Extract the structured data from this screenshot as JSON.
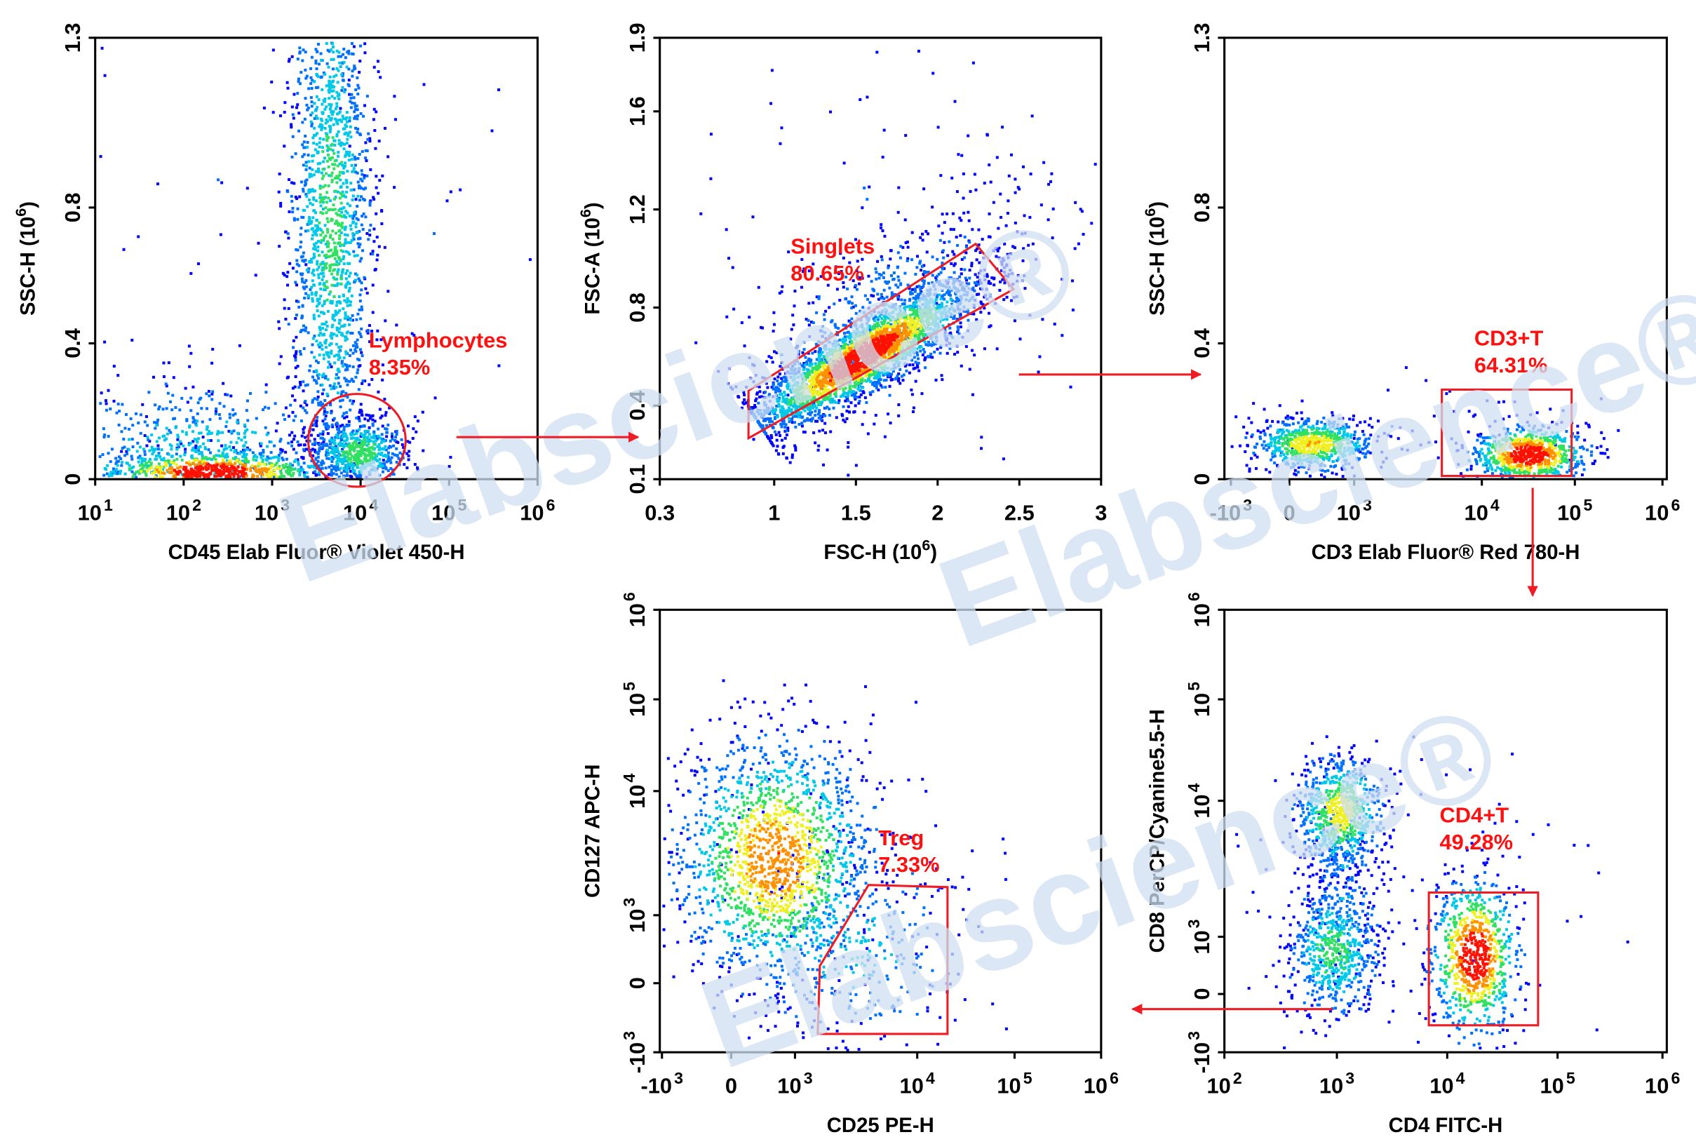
{
  "watermark": "Elabscience®",
  "chart_data": [
    {
      "type": "scatter",
      "title": "",
      "xlabel_parts": [
        "CD45 Elab Fluor® Violet 450-H"
      ],
      "ylabel_parts": [
        "SSC-H  (10",
        "6",
        ")"
      ],
      "xscale": "log",
      "xlim": [
        10,
        1000000
      ],
      "yscale": "linear",
      "ylim": [
        0,
        1.3
      ],
      "xticks": [
        {
          "v": 10,
          "b": "10",
          "e": "1"
        },
        {
          "v": 100,
          "b": "10",
          "e": "2"
        },
        {
          "v": 1000,
          "b": "10",
          "e": "3"
        },
        {
          "v": 10000,
          "b": "10",
          "e": "4"
        },
        {
          "v": 100000,
          "b": "10",
          "e": "5"
        },
        {
          "v": 1000000,
          "b": "10",
          "e": "6"
        }
      ],
      "yticks": [
        {
          "v": 0,
          "b": "0"
        },
        {
          "v": 0.4,
          "b": "0.4"
        },
        {
          "v": 0.8,
          "b": "0.8"
        },
        {
          "v": 1.3,
          "b": "1.3"
        }
      ],
      "gate": {
        "name": "Lymphocytes",
        "percent": "8.35%",
        "shape": "ellipse"
      }
    },
    {
      "type": "scatter",
      "title": "",
      "xlabel_parts": [
        "FSC-H  (10",
        "6",
        ")"
      ],
      "ylabel_parts": [
        "FSC-A  (10",
        "6",
        ")"
      ],
      "xscale": "linear",
      "xlim": [
        0.3,
        3
      ],
      "yscale": "linear",
      "ylim": [
        0.1,
        1.9
      ],
      "xticks": [
        {
          "v": 0.3,
          "b": "0.3"
        },
        {
          "v": 1,
          "b": "1"
        },
        {
          "v": 1.5,
          "b": "1.5"
        },
        {
          "v": 2,
          "b": "2"
        },
        {
          "v": 2.5,
          "b": "2.5"
        },
        {
          "v": 3,
          "b": "3"
        }
      ],
      "yticks": [
        {
          "v": 0.1,
          "b": "0.1"
        },
        {
          "v": 0.4,
          "b": "0.4"
        },
        {
          "v": 0.8,
          "b": "0.8"
        },
        {
          "v": 1.2,
          "b": "1.2"
        },
        {
          "v": 1.6,
          "b": "1.6"
        },
        {
          "v": 1.9,
          "b": "1.9"
        }
      ],
      "gate": {
        "name": "Singlets",
        "percent": "80.65%",
        "shape": "polygon"
      }
    },
    {
      "type": "scatter",
      "title": "",
      "xlabel_parts": [
        "CD3 Elab Fluor® Red 780-H"
      ],
      "ylabel_parts": [
        "SSC-H  (10",
        "6",
        ")"
      ],
      "xscale": "biexponential",
      "xlim": [
        -1000,
        1000000
      ],
      "yscale": "linear",
      "ylim": [
        0,
        1.3
      ],
      "xticks": [
        {
          "v": -1000,
          "b": "-10",
          "e": "3"
        },
        {
          "v": 0,
          "b": "0"
        },
        {
          "v": 1000,
          "b": "10",
          "e": "3"
        },
        {
          "v": 10000,
          "b": "10",
          "e": "4"
        },
        {
          "v": 100000,
          "b": "10",
          "e": "5"
        },
        {
          "v": 1000000,
          "b": "10",
          "e": "6"
        }
      ],
      "yticks": [
        {
          "v": 0,
          "b": "0"
        },
        {
          "v": 0.4,
          "b": "0.4"
        },
        {
          "v": 0.8,
          "b": "0.8"
        },
        {
          "v": 1.3,
          "b": "1.3"
        }
      ],
      "gate": {
        "name": "CD3+T",
        "percent": "64.31%",
        "shape": "rectangle"
      }
    },
    {
      "type": "scatter",
      "title": "",
      "xlabel_parts": [
        "CD25 PE-H"
      ],
      "ylabel_parts": [
        "CD127 APC-H"
      ],
      "xscale": "biexponential",
      "xlim": [
        -1000,
        1000000
      ],
      "yscale": "biexponential",
      "ylim": [
        -1000,
        1000000
      ],
      "xticks": [
        {
          "v": -1000,
          "b": "-10",
          "e": "3"
        },
        {
          "v": 0,
          "b": "0"
        },
        {
          "v": 1000,
          "b": "10",
          "e": "3"
        },
        {
          "v": 10000,
          "b": "10",
          "e": "4"
        },
        {
          "v": 100000,
          "b": "10",
          "e": "5"
        },
        {
          "v": 1000000,
          "b": "10",
          "e": "6"
        }
      ],
      "yticks": [
        {
          "v": -1000,
          "b": "-10",
          "e": "3"
        },
        {
          "v": 0,
          "b": "0"
        },
        {
          "v": 1000,
          "b": "10",
          "e": "3"
        },
        {
          "v": 10000,
          "b": "10",
          "e": "4"
        },
        {
          "v": 100000,
          "b": "10",
          "e": "5"
        },
        {
          "v": 1000000,
          "b": "10",
          "e": "6"
        }
      ],
      "gate": {
        "name": "Treg",
        "percent": "7.33%",
        "shape": "polygon"
      }
    },
    {
      "type": "scatter",
      "title": "",
      "xlabel_parts": [
        "CD4 FITC-H"
      ],
      "ylabel_parts": [
        "CD8 PerCP/Cyanine5.5-H"
      ],
      "xscale": "log",
      "xlim": [
        100,
        1000000
      ],
      "yscale": "biexponential",
      "ylim": [
        -1000,
        1000000
      ],
      "xticks": [
        {
          "v": 100,
          "b": "10",
          "e": "2"
        },
        {
          "v": 1000,
          "b": "10",
          "e": "3"
        },
        {
          "v": 10000,
          "b": "10",
          "e": "4"
        },
        {
          "v": 100000,
          "b": "10",
          "e": "5"
        },
        {
          "v": 1000000,
          "b": "10",
          "e": "6"
        }
      ],
      "yticks": [
        {
          "v": -1000,
          "b": "-10",
          "e": "3"
        },
        {
          "v": 0,
          "b": "0"
        },
        {
          "v": 1000,
          "b": "10",
          "e": "3"
        },
        {
          "v": 10000,
          "b": "10",
          "e": "4"
        },
        {
          "v": 100000,
          "b": "10",
          "e": "5"
        },
        {
          "v": 1000000,
          "b": "10",
          "e": "6"
        }
      ],
      "gate": {
        "name": "CD4+T",
        "percent": "49.28%",
        "shape": "rectangle"
      }
    }
  ],
  "colors": {
    "gate": "#ee1c24",
    "watermark": "#cfe0f2",
    "density": [
      "#0000ff",
      "#0070ff",
      "#00c8e8",
      "#30e060",
      "#f0f020",
      "#ff9000",
      "#ff1000"
    ]
  }
}
